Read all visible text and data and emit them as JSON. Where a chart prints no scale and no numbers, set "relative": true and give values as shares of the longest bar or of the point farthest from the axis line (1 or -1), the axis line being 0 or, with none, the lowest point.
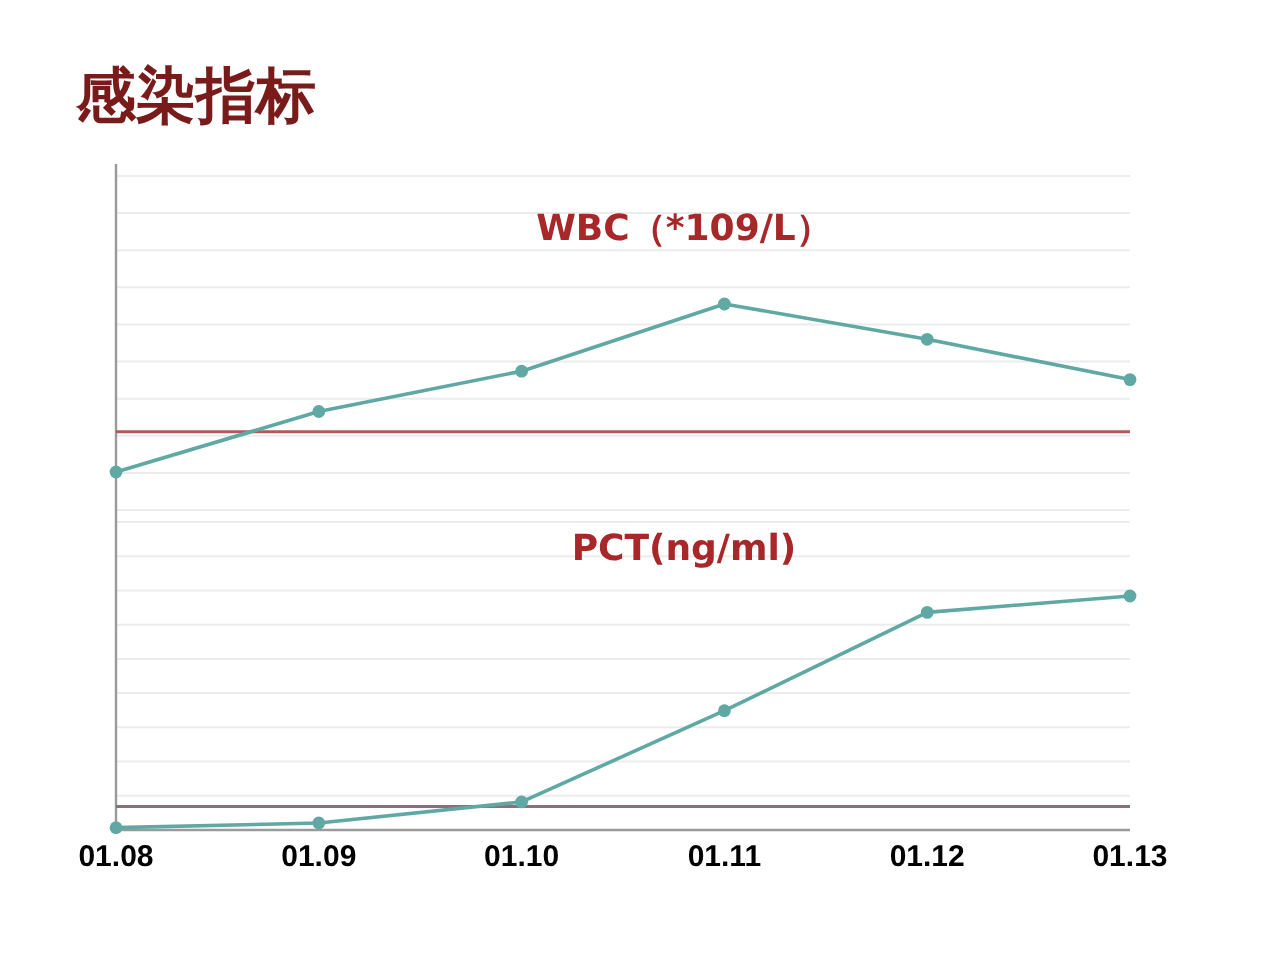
{
  "chart_data": [
    {
      "type": "line",
      "title": "感染指标",
      "subtitle": "WBC（*109/L）",
      "relative": true,
      "categories": [
        null,
        null,
        null,
        null,
        null,
        null
      ],
      "tick_labels": false,
      "grid": "y",
      "marker": "circle",
      "series": [
        {
          "color": "#5fa8a3",
          "values": [
            0,
            0.36,
            0.6,
            1,
            0.79,
            0.55
          ]
        }
      ],
      "ref_lines": [
        {
          "axis": "y",
          "value": 0.24,
          "color": "#b5585a"
        }
      ]
    },
    {
      "type": "line",
      "title": "PCT(ng/ml)",
      "relative": true,
      "categories": [
        "01.08",
        "01.09",
        "01.10",
        "01.11",
        "01.12",
        "01.13"
      ],
      "tick_labels": "x",
      "grid": "y",
      "marker": "circle",
      "series": [
        {
          "color": "#5fa8a3",
          "values": [
            0.01,
            0.03,
            0.12,
            0.51,
            0.93,
            1
          ]
        }
      ],
      "ref_lines": [
        {
          "axis": "y",
          "value": 0.1,
          "color": "#8b6f7d"
        }
      ]
    }
  ]
}
